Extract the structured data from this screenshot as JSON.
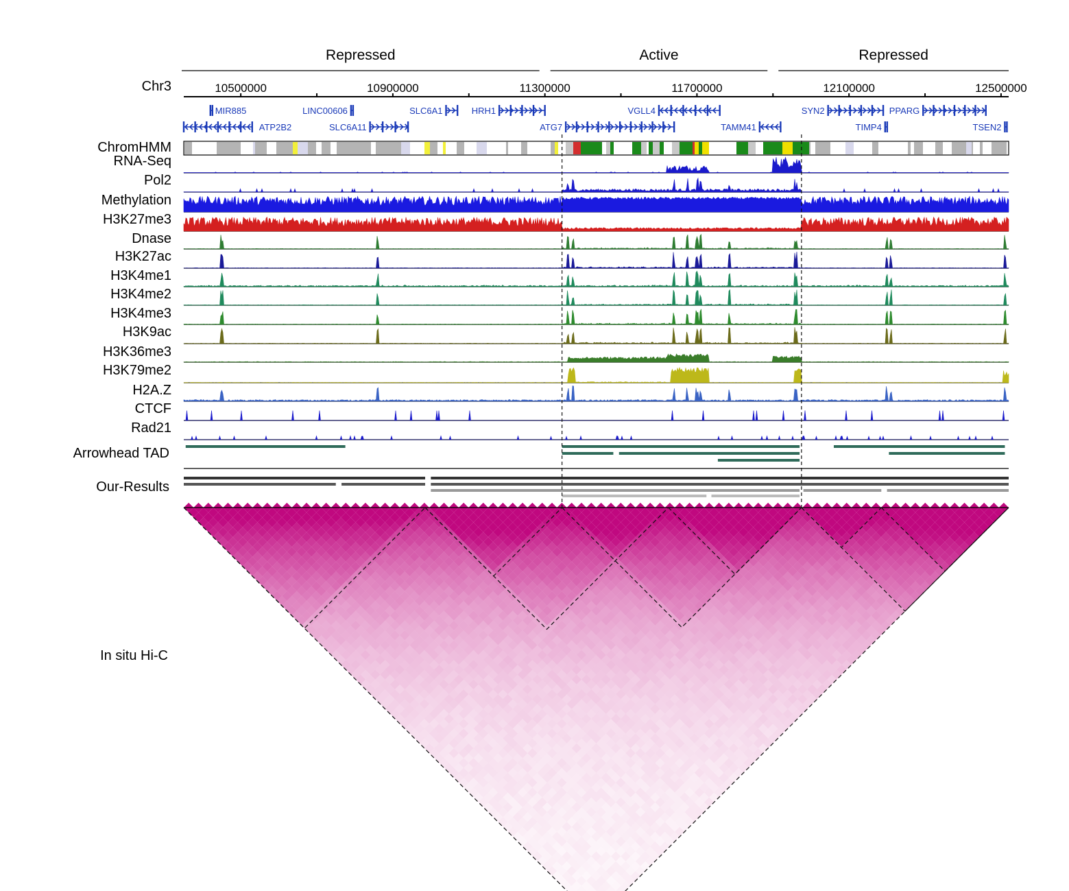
{
  "regions": [
    {
      "label": "Repressed",
      "start": 10400000,
      "end": 11300000
    },
    {
      "label": "Active",
      "start": 11300000,
      "end": 11900000
    },
    {
      "label": "Repressed",
      "start": 11900000,
      "end": 12500000
    }
  ],
  "chromosome": "Chr3",
  "axis": {
    "range": [
      10350000,
      12520000
    ],
    "ticks": [
      10500000,
      10700000,
      10900000,
      11100000,
      11300000,
      11500000,
      11700000,
      11900000,
      12100000,
      12300000,
      12500000
    ],
    "labeled_ticks": [
      {
        "pos": 10500000,
        "label": "10500000"
      },
      {
        "pos": 10900000,
        "label": "10900000"
      },
      {
        "pos": 11300000,
        "label": "11300000"
      },
      {
        "pos": 11700000,
        "label": "11700000"
      },
      {
        "pos": 12100000,
        "label": "12100000"
      },
      {
        "pos": 12500000,
        "label": "12500000"
      }
    ]
  },
  "boundaries": [
    11345000,
    11975000
  ],
  "genes": [
    {
      "name": "MIR885",
      "start": 10420000,
      "end": 10425000,
      "strand": "-",
      "row": 0
    },
    {
      "name": "LINC00606",
      "start": 10790000,
      "end": 10795000,
      "strand": "+",
      "row": 0
    },
    {
      "name": "SLC6A1",
      "start": 11040000,
      "end": 11070000,
      "strand": "+",
      "row": 0
    },
    {
      "name": "HRH1",
      "start": 11180000,
      "end": 11300000,
      "strand": "+",
      "row": 0
    },
    {
      "name": "VGLL4",
      "start": 11600000,
      "end": 11760000,
      "strand": "-",
      "row": 0
    },
    {
      "name": "SYN2",
      "start": 12045000,
      "end": 12190000,
      "strand": "+",
      "row": 0
    },
    {
      "name": "PPARG",
      "start": 12295000,
      "end": 12460000,
      "strand": "+",
      "row": 0
    },
    {
      "name": "ATP2B2",
      "start": 10350000,
      "end": 10530000,
      "strand": "-",
      "row": 1
    },
    {
      "name": "SLC6A11",
      "start": 10840000,
      "end": 10940000,
      "strand": "+",
      "row": 1
    },
    {
      "name": "ATG7",
      "start": 11355000,
      "end": 11640000,
      "strand": "+",
      "row": 1
    },
    {
      "name": "TAMM41",
      "start": 11865000,
      "end": 11920000,
      "strand": "-",
      "row": 1
    },
    {
      "name": "TIMP4",
      "start": 12195000,
      "end": 12198000,
      "strand": "-",
      "row": 1
    },
    {
      "name": "TSEN2",
      "start": 12510000,
      "end": 12515000,
      "strand": "+",
      "row": 1
    }
  ],
  "tracks": [
    {
      "label": "ChromHMM",
      "type": "chromhmm"
    },
    {
      "label": "RNA-Seq",
      "color": "#1a1acc",
      "profile": "rna"
    },
    {
      "label": "Pol2",
      "color": "#1a1acc",
      "profile": "pol2"
    },
    {
      "label": "Methylation",
      "color": "#1a1ae0",
      "profile": "methyl"
    },
    {
      "label": "H3K27me3",
      "color": "#d42020",
      "profile": "k27me3"
    },
    {
      "label": "Dnase",
      "color": "#2e7d32",
      "profile": "active"
    },
    {
      "label": "H3K27ac",
      "color": "#1a1a99",
      "profile": "active"
    },
    {
      "label": "H3K4me1",
      "color": "#1f8a5c",
      "profile": "me1"
    },
    {
      "label": "H3K4me2",
      "color": "#1f8a5c",
      "profile": "active"
    },
    {
      "label": "H3K4me3",
      "color": "#2e8b2e",
      "profile": "active"
    },
    {
      "label": "H3K9ac",
      "color": "#6b6b1a",
      "profile": "active"
    },
    {
      "label": "H3K36me3",
      "color": "#3a7d2a",
      "profile": "k36"
    },
    {
      "label": "H3K79me2",
      "color": "#bdb81a",
      "profile": "k79"
    },
    {
      "label": "H2A.Z",
      "color": "#3a63c4",
      "profile": "h2az"
    },
    {
      "label": "CTCF",
      "color": "#1a1acc",
      "profile": "ctcf"
    },
    {
      "label": "Rad21",
      "color": "#1a1acc",
      "profile": "rad21"
    }
  ],
  "arrowhead_label": "Arrowhead TAD",
  "arrowhead_tads": [
    {
      "start": 10355000,
      "end": 10775000,
      "row": 0
    },
    {
      "start": 11345000,
      "end": 11970000,
      "row": 0
    },
    {
      "start": 12060000,
      "end": 12510000,
      "row": 0
    },
    {
      "start": 11345000,
      "end": 11480000,
      "row": 1
    },
    {
      "start": 11495000,
      "end": 11970000,
      "row": 1
    },
    {
      "start": 12205000,
      "end": 12510000,
      "row": 1
    },
    {
      "start": 11755000,
      "end": 11970000,
      "row": 2
    }
  ],
  "results_label": "Our-Results",
  "our_results": [
    {
      "start": 10350000,
      "end": 10985000,
      "row": 0,
      "color": "#333333"
    },
    {
      "start": 11000000,
      "end": 12520000,
      "row": 0,
      "color": "#333333"
    },
    {
      "start": 10350000,
      "end": 10750000,
      "row": 1,
      "color": "#555555"
    },
    {
      "start": 10765000,
      "end": 10985000,
      "row": 1,
      "color": "#555555"
    },
    {
      "start": 11000000,
      "end": 12520000,
      "row": 1,
      "color": "#555555"
    },
    {
      "start": 11000000,
      "end": 11345000,
      "row": 2,
      "color": "#999999"
    },
    {
      "start": 11345000,
      "end": 11970000,
      "row": 2,
      "color": "#999999"
    },
    {
      "start": 11980000,
      "end": 12185000,
      "row": 2,
      "color": "#999999"
    },
    {
      "start": 12200000,
      "end": 12520000,
      "row": 2,
      "color": "#999999"
    },
    {
      "start": 11345000,
      "end": 11725000,
      "row": 3,
      "color": "#bbbbbb"
    },
    {
      "start": 11738000,
      "end": 11970000,
      "row": 3,
      "color": "#bbbbbb"
    }
  ],
  "hic_label": "In situ Hi-C",
  "hic_tads": [
    {
      "start": 10350000,
      "end": 10985000
    },
    {
      "start": 10985000,
      "end": 11345000
    },
    {
      "start": 10985000,
      "end": 11625000
    },
    {
      "start": 11345000,
      "end": 11975000
    },
    {
      "start": 11625000,
      "end": 11975000
    },
    {
      "start": 11975000,
      "end": 12185000
    },
    {
      "start": 12185000,
      "end": 12520000
    },
    {
      "start": 11975000,
      "end": 12520000
    },
    {
      "start": 10350000,
      "end": 12520000
    }
  ],
  "colors": {
    "hic": "#c0087f",
    "gene": "#1a3ab8",
    "tad": "#2f6b5a",
    "chromhmm_active": "#1a8a1a",
    "chromhmm_repressed": "#b4b4b4"
  }
}
